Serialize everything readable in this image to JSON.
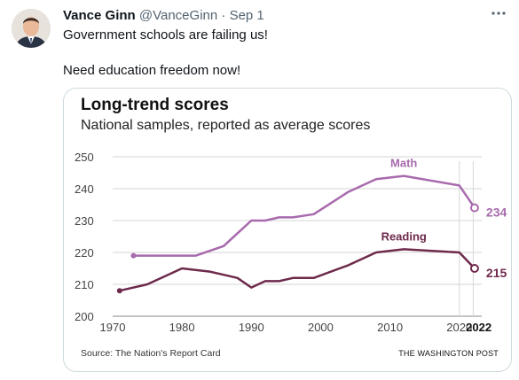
{
  "tweet": {
    "author_name": "Vance Ginn",
    "handle": "@VanceGinn",
    "separator": "·",
    "date": "Sep 1",
    "more_icon": "more-horizontal-icon",
    "lines": [
      "Government schools are failing us!",
      "Need education freedom now!"
    ]
  },
  "card": {
    "title": "Long-trend scores",
    "subtitle": "National samples, reported as average scores",
    "source": "Source: The Nation's Report Card",
    "credit": "THE WASHINGTON POST"
  },
  "chart_data": {
    "type": "line",
    "ylim": [
      200,
      250
    ],
    "xlim": [
      1970,
      2024
    ],
    "y_ticks": [
      "200",
      "210",
      "220",
      "230",
      "240",
      "250"
    ],
    "x_ticks": [
      "1970",
      "1980",
      "1990",
      "2000",
      "2010",
      "2020",
      "2022"
    ],
    "grid": true,
    "series": [
      {
        "name": "Math",
        "color": "#a86aad",
        "end_label": "234",
        "x": [
          1973,
          1982,
          1986,
          1990,
          1992,
          1994,
          1996,
          1999,
          2004,
          2008,
          2012,
          2020,
          2022.2
        ],
        "y": [
          219,
          219,
          222,
          230,
          230,
          231,
          231,
          232,
          239,
          243,
          244,
          241,
          234
        ]
      },
      {
        "name": "Reading",
        "color": "#6e2a4c",
        "end_label": "215",
        "x": [
          1971,
          1975,
          1980,
          1984,
          1988,
          1990,
          1992,
          1994,
          1996,
          1999,
          2004,
          2008,
          2012,
          2020,
          2022.2
        ],
        "y": [
          208,
          210,
          215,
          214,
          212,
          209,
          211,
          211,
          212,
          212,
          216,
          220,
          221,
          220,
          215
        ]
      }
    ]
  }
}
